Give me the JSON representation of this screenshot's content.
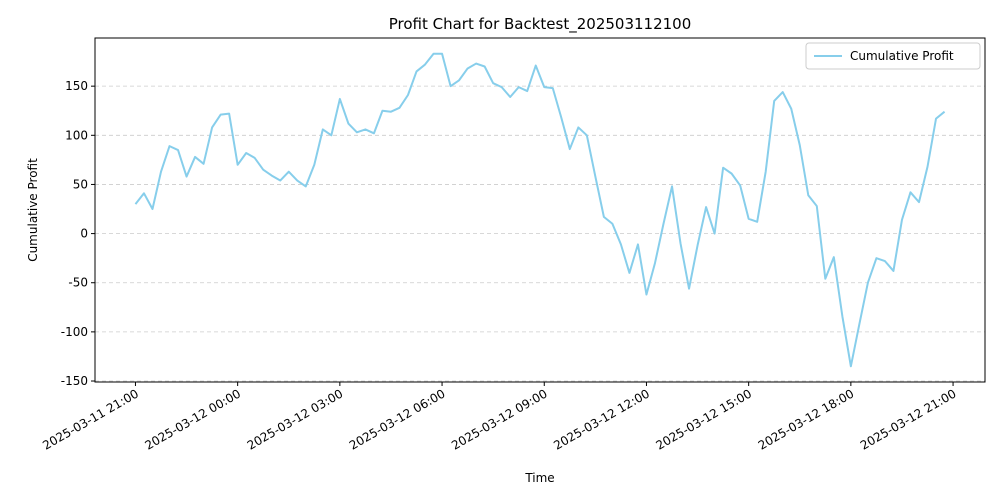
{
  "chart_data": {
    "type": "line",
    "title": "Profit Chart for Backtest_202503112100",
    "xlabel": "Time",
    "ylabel": "Cumulative Profit",
    "x": [
      "2025-03-11 21:00",
      "2025-03-11 21:15",
      "2025-03-11 21:30",
      "2025-03-11 21:45",
      "2025-03-11 22:00",
      "2025-03-11 22:15",
      "2025-03-11 22:30",
      "2025-03-11 22:45",
      "2025-03-11 23:00",
      "2025-03-11 23:15",
      "2025-03-11 23:30",
      "2025-03-11 23:45",
      "2025-03-12 00:00",
      "2025-03-12 00:15",
      "2025-03-12 00:30",
      "2025-03-12 00:45",
      "2025-03-12 01:00",
      "2025-03-12 01:15",
      "2025-03-12 01:30",
      "2025-03-12 01:45",
      "2025-03-12 02:00",
      "2025-03-12 02:15",
      "2025-03-12 02:30",
      "2025-03-12 02:45",
      "2025-03-12 03:00",
      "2025-03-12 03:15",
      "2025-03-12 03:30",
      "2025-03-12 03:45",
      "2025-03-12 04:00",
      "2025-03-12 04:15",
      "2025-03-12 04:30",
      "2025-03-12 04:45",
      "2025-03-12 05:00",
      "2025-03-12 05:15",
      "2025-03-12 05:30",
      "2025-03-12 05:45",
      "2025-03-12 06:00",
      "2025-03-12 06:15",
      "2025-03-12 06:30",
      "2025-03-12 06:45",
      "2025-03-12 07:00",
      "2025-03-12 07:15",
      "2025-03-12 07:30",
      "2025-03-12 07:45",
      "2025-03-12 08:00",
      "2025-03-12 08:15",
      "2025-03-12 08:30",
      "2025-03-12 08:45",
      "2025-03-12 09:00",
      "2025-03-12 09:15",
      "2025-03-12 09:30",
      "2025-03-12 09:45",
      "2025-03-12 10:00",
      "2025-03-12 10:15",
      "2025-03-12 10:30",
      "2025-03-12 10:45",
      "2025-03-12 11:00",
      "2025-03-12 11:15",
      "2025-03-12 11:30",
      "2025-03-12 11:45",
      "2025-03-12 12:00",
      "2025-03-12 12:15",
      "2025-03-12 12:30",
      "2025-03-12 12:45",
      "2025-03-12 13:00",
      "2025-03-12 13:15",
      "2025-03-12 13:30",
      "2025-03-12 13:45",
      "2025-03-12 14:00",
      "2025-03-12 14:15",
      "2025-03-12 14:30",
      "2025-03-12 14:45",
      "2025-03-12 15:00",
      "2025-03-12 15:15",
      "2025-03-12 15:30",
      "2025-03-12 15:45",
      "2025-03-12 16:00",
      "2025-03-12 16:15",
      "2025-03-12 16:30",
      "2025-03-12 16:45",
      "2025-03-12 17:00",
      "2025-03-12 17:15",
      "2025-03-12 17:30",
      "2025-03-12 17:45",
      "2025-03-12 18:00",
      "2025-03-12 18:15",
      "2025-03-12 18:30",
      "2025-03-12 18:45",
      "2025-03-12 19:00",
      "2025-03-12 19:15",
      "2025-03-12 19:30",
      "2025-03-12 19:45",
      "2025-03-12 20:00",
      "2025-03-12 20:15",
      "2025-03-12 20:30",
      "2025-03-12 20:45"
    ],
    "series": [
      {
        "name": "Cumulative Profit",
        "color": "#87ceeb",
        "values": [
          30,
          41,
          25,
          63,
          89,
          85,
          58,
          78,
          71,
          108,
          121,
          122,
          70,
          82,
          77,
          65,
          59,
          54,
          63,
          54,
          48,
          70,
          106,
          100,
          137,
          112,
          103,
          106,
          102,
          125,
          124,
          128,
          141,
          165,
          172,
          183,
          183,
          150,
          156,
          168,
          173,
          170,
          153,
          149,
          139,
          149,
          145,
          171,
          149,
          148,
          118,
          86,
          108,
          100,
          58,
          17,
          10,
          -11,
          -40,
          -11,
          -62,
          -30,
          10,
          48,
          -10,
          -56,
          -12,
          27,
          0,
          67,
          61,
          49,
          15,
          12,
          63,
          135,
          144,
          127,
          90,
          39,
          28,
          -46,
          -24,
          -84,
          -135,
          -92,
          -50,
          -25,
          -28,
          -38,
          14,
          42,
          32,
          68,
          117,
          124
        ]
      }
    ],
    "xlim": [
      "2025-03-11 19:48:45",
      "2025-03-12 21:56:15"
    ],
    "xticks": [
      "2025-03-11 21:00",
      "2025-03-12 00:00",
      "2025-03-12 03:00",
      "2025-03-12 06:00",
      "2025-03-12 09:00",
      "2025-03-12 12:00",
      "2025-03-12 15:00",
      "2025-03-12 18:00",
      "2025-03-12 21:00"
    ],
    "ylim": [
      -151,
      199
    ],
    "yticks": [
      -150,
      -100,
      -50,
      0,
      50,
      100,
      150
    ],
    "grid": true,
    "legend": "upper right"
  }
}
